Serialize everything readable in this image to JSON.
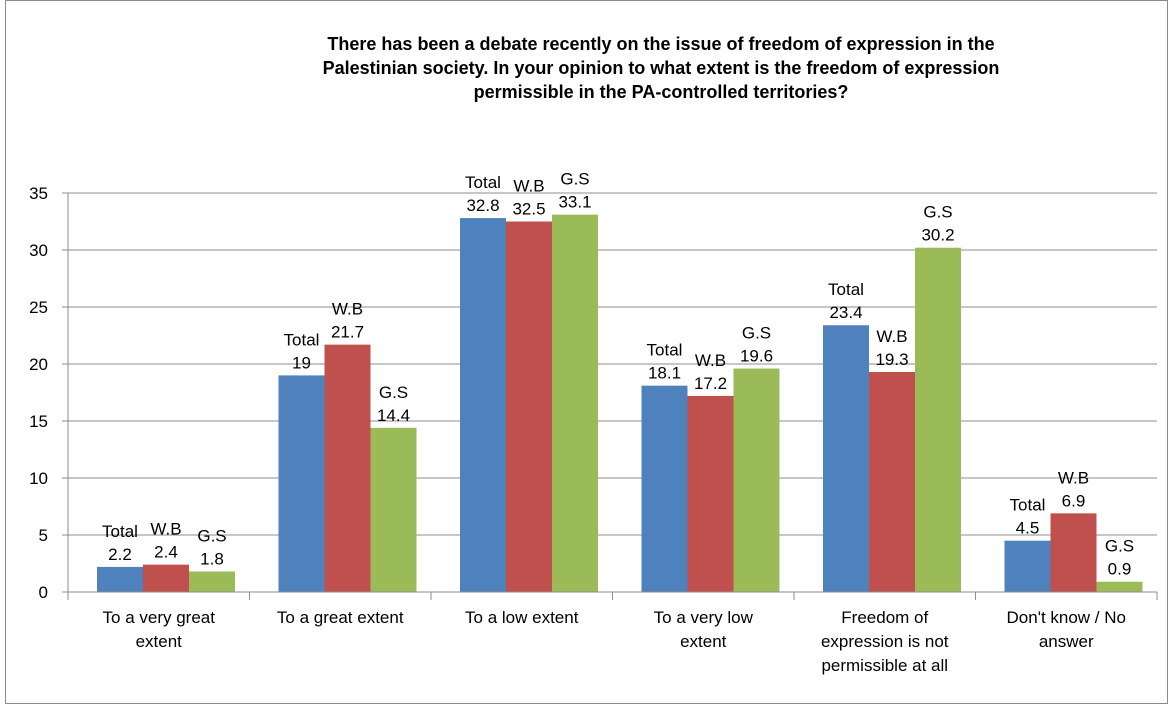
{
  "chart_data": {
    "type": "bar",
    "title_lines": [
      "There has been a debate recently on the issue of freedom of expression in the",
      "Palestinian society. In your opinion to what extent is the freedom of expression",
      "permissible in the PA-controlled territories?"
    ],
    "categories": [
      [
        "To a very great",
        "extent"
      ],
      [
        "To a great extent"
      ],
      [
        "To a low extent"
      ],
      [
        "To a very low",
        "extent"
      ],
      [
        "Freedom of",
        "expression is not",
        "permissible at all"
      ],
      [
        "Don't know / No",
        "answer"
      ]
    ],
    "series": [
      {
        "name": "Total",
        "color": "#4f81bd",
        "values": [
          2.2,
          19,
          32.8,
          18.1,
          23.4,
          4.5
        ]
      },
      {
        "name": "W.B",
        "color": "#c0504d",
        "values": [
          2.4,
          21.7,
          32.5,
          17.2,
          19.3,
          6.9
        ]
      },
      {
        "name": "G.S",
        "color": "#9bbb59",
        "values": [
          1.8,
          14.4,
          33.1,
          19.6,
          30.2,
          0.9
        ]
      }
    ],
    "ylim": [
      0,
      35
    ],
    "yticks": [
      0,
      5,
      10,
      15,
      20,
      25,
      30,
      35
    ],
    "grid": true,
    "legend": "none",
    "xlabel": "",
    "ylabel": ""
  }
}
